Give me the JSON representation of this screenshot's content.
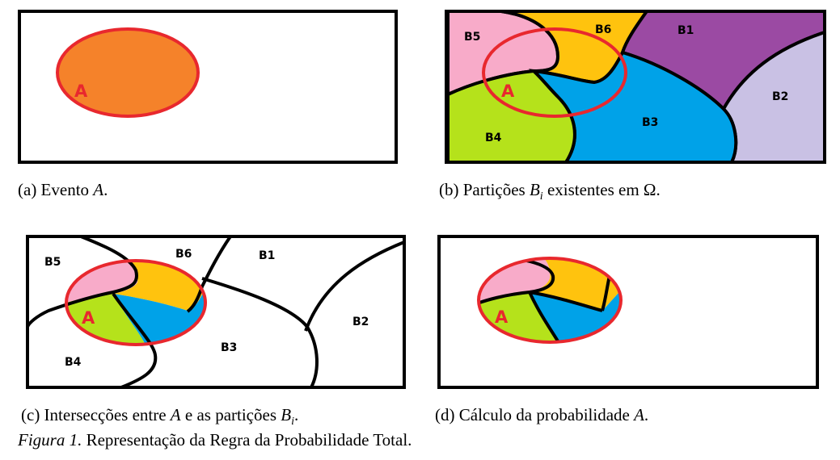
{
  "colors": {
    "frame": "#000000",
    "event_fill": "#f5822a",
    "event_stroke": "#e8282e",
    "b1": "#9b4aa3",
    "b2": "#c9c1e4",
    "b3": "#00a2e8",
    "b4": "#b5e21b",
    "b5": "#f8abc9",
    "b6": "#ffc30e"
  },
  "labels": {
    "event": "A",
    "b1": "B1",
    "b2": "B2",
    "b3": "B3",
    "b4": "B4",
    "b5": "B5",
    "b6": "B6"
  },
  "captions": {
    "a_prefix": "(a) Evento ",
    "a_math": "A",
    "a_suffix": ".",
    "b_prefix": "(b) Partições ",
    "b_math": "B",
    "b_sub": "i",
    "b_suffix": " existentes em Ω.",
    "c_prefix": "(c) Intersecções entre ",
    "c_math1": "A",
    "c_mid": " e as partições ",
    "c_math2": "B",
    "c_sub": "i",
    "c_suffix": ".",
    "d_prefix": "(d) Cálculo da probabilidade ",
    "d_math": "A",
    "d_suffix": "."
  },
  "figure_caption": {
    "lead": "Figura 1.",
    "text": " Representação da Regra da Probabilidade Total."
  }
}
